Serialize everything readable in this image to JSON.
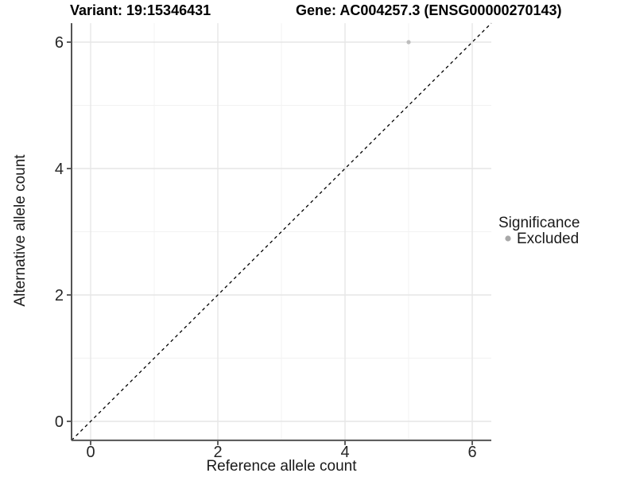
{
  "chart_data": {
    "type": "scatter",
    "title_left": "Variant: 19:15346431",
    "title_right": "Gene: AC004257.3 (ENSG00000270143)",
    "xlabel": "Reference allele count",
    "ylabel": "Alternative allele count",
    "xlim": [
      -0.3,
      6.3
    ],
    "ylim": [
      -0.3,
      6.3
    ],
    "x_major_ticks": [
      0,
      2,
      4,
      6
    ],
    "y_major_ticks": [
      0,
      2,
      4,
      6
    ],
    "x_minor_ticks": [
      1,
      3,
      5
    ],
    "y_minor_ticks": [
      1,
      3,
      5
    ],
    "grid": {
      "major_color": "#e6e6e6",
      "minor_color": "#f2f2f2",
      "background": "#ffffff"
    },
    "axis_line_color": "#545454",
    "tick_mark_color": "#4d4d4d",
    "reference_line": {
      "kind": "identity y=x",
      "style": "dashed",
      "color": "#000000"
    },
    "series": [
      {
        "name": "Excluded",
        "marker": "circle",
        "marker_color": "#bdbdbd",
        "points": [
          [
            5,
            6
          ]
        ]
      }
    ],
    "legend": {
      "title": "Significance",
      "position": "right",
      "items": [
        {
          "label": "Excluded",
          "marker": "circle",
          "marker_color": "#a8a8a8"
        }
      ]
    }
  }
}
